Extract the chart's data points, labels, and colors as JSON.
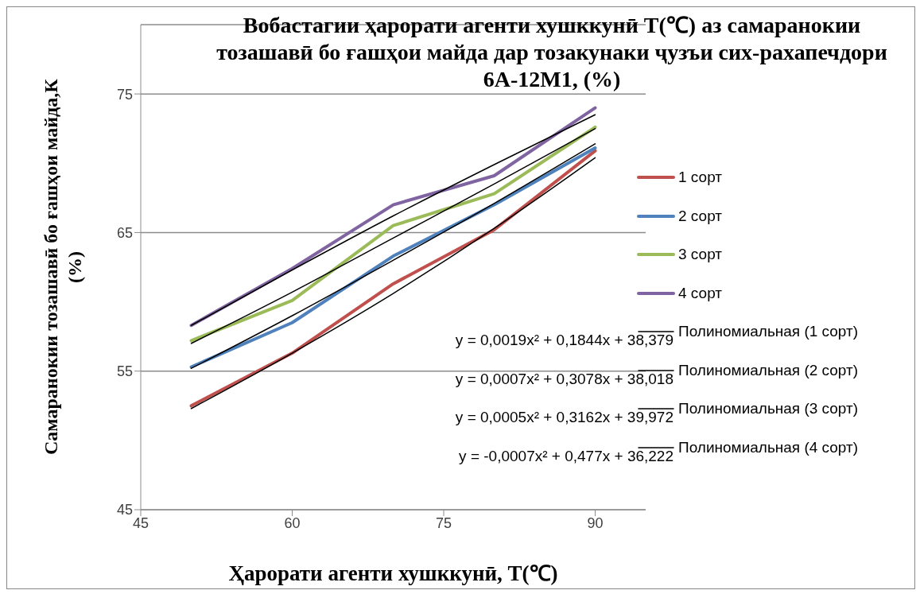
{
  "chart_data": {
    "type": "line",
    "title": "Вобастагии ҳарорати агенти хушккунӣ T(℃) аз самаранокии тозашавӣ бо ғашҳои майда дар тозакунаки ҷузъи сих-рахапечдори 6А-12М1, (%)",
    "xlabel": "Ҳарорати агенти хушккунӣ, T(℃)",
    "ylabel": "Самаранокии тозашавӣ бо ғашҳои майда,К (%)",
    "x": [
      50,
      60,
      70,
      80,
      90
    ],
    "series": [
      {
        "name": "1 сорт",
        "color": "#c0504d",
        "values": [
          52.5,
          56.3,
          61.3,
          65.2,
          70.9
        ]
      },
      {
        "name": "2 сорт",
        "color": "#4f81bd",
        "values": [
          55.3,
          58.5,
          63.3,
          67.0,
          71.1
        ]
      },
      {
        "name": "3 сорт",
        "color": "#9bbb59",
        "values": [
          57.2,
          60.1,
          65.5,
          67.8,
          72.6
        ]
      },
      {
        "name": "4 сорт",
        "color": "#8064a2",
        "values": [
          58.3,
          62.4,
          67.0,
          69.1,
          74.0
        ]
      },
      {
        "name": "Полиномиальная (1 сорт)",
        "type": "line",
        "color": "#000000",
        "values": [
          52.3,
          56.3,
          60.6,
          65.3,
          70.4
        ]
      },
      {
        "name": "Полиномиальная (2 сорт)",
        "type": "line",
        "color": "#000000",
        "values": [
          55.2,
          59.0,
          63.0,
          67.1,
          71.4
        ]
      },
      {
        "name": "Полиномиальная (3 сорт)",
        "type": "line",
        "color": "#000000",
        "values": [
          57.0,
          60.7,
          64.6,
          68.5,
          72.5
        ]
      },
      {
        "name": "Полиномиальная (4 сорт)",
        "type": "line",
        "color": "#000000",
        "values": [
          58.3,
          62.3,
          66.2,
          69.9,
          73.5
        ]
      }
    ],
    "annotations": [
      "y = 0,0019x² + 0,1844x + 38,379",
      "y = 0,0007x² + 0,3078x + 38,018",
      "y = 0,0005x² + 0,3162x + 39,972",
      "y = -0,0007x² + 0,477x + 36,222"
    ],
    "xlim": [
      45,
      95
    ],
    "xticks": [
      45,
      60,
      75,
      90
    ],
    "ylim": [
      45,
      80
    ],
    "yticks": [
      45,
      55,
      65,
      75
    ],
    "grid": "y",
    "legend": "right",
    "marker": "none",
    "line_style": "solid"
  }
}
